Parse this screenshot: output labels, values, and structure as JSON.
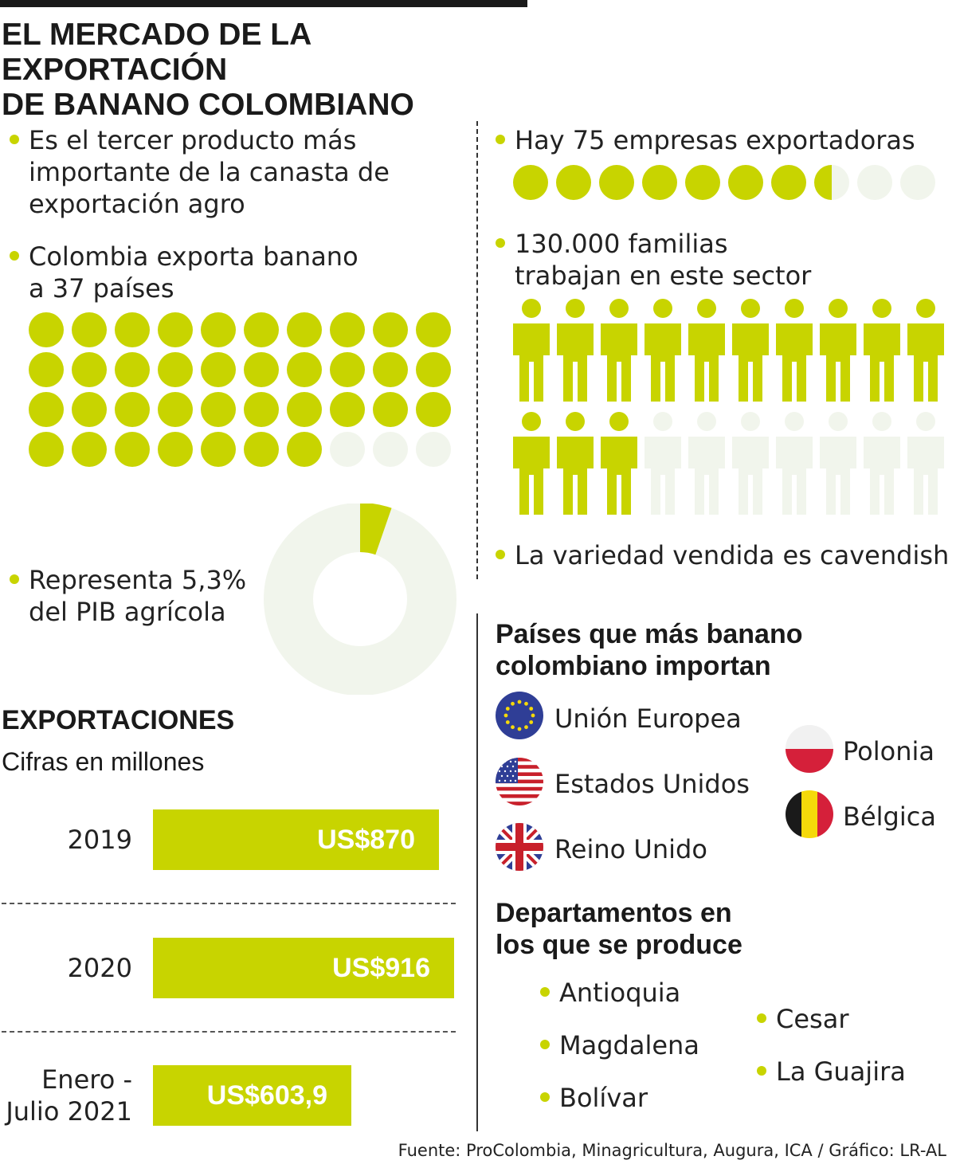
{
  "title": [
    "EL MERCADO DE LA EXPORTACIÓN",
    "DE BANANO COLOMBIANO"
  ],
  "facts": {
    "third_product": [
      "Es el tercer producto más",
      "importante de la canasta de",
      "exportación agro"
    ],
    "countries": [
      "Colombia exporta banano",
      "a 37 países"
    ],
    "pib": [
      "Representa 5,3%",
      "del PIB agrícola"
    ],
    "companies": "Hay 75 empresas exportadoras",
    "families": [
      "130.000 familias",
      "trabajan en este sector"
    ],
    "variety": "La variedad vendida es cavendish"
  },
  "countries_total_icons": 40,
  "countries_value": 37,
  "companies_icons_total": 10,
  "companies_icons_filled": 7.5,
  "families_icons_total": 20,
  "families_icons_filled": 13,
  "pib_share_percent": 5.3,
  "exports": {
    "heading": "EXPORTACIONES",
    "subheading": "Cifras en millones"
  },
  "chart_data": {
    "type": "bar",
    "categories": [
      "2019",
      "2020",
      "Enero - Julio 2021"
    ],
    "category_lines": [
      [
        "2019"
      ],
      [
        "2020"
      ],
      [
        "Enero -",
        "Julio 2021"
      ]
    ],
    "values": [
      870,
      916,
      603.9
    ],
    "value_labels": [
      "US$870",
      "US$916",
      "US$603,9"
    ],
    "title": "EXPORTACIONES",
    "subtitle": "Cifras en millones",
    "orientation": "horizontal",
    "grid": false
  },
  "importers": {
    "heading": [
      "Países que más banano",
      "colombiano importan"
    ],
    "items": [
      {
        "name": "Unión Europea",
        "flag": "eu-flag-icon"
      },
      {
        "name": "Estados Unidos",
        "flag": "us-flag-icon"
      },
      {
        "name": "Reino Unido",
        "flag": "uk-flag-icon"
      },
      {
        "name": "Polonia",
        "flag": "poland-flag-icon"
      },
      {
        "name": "Bélgica",
        "flag": "belgium-flag-icon"
      }
    ]
  },
  "departments": {
    "heading": [
      "Departamentos en",
      "los que se produce"
    ],
    "items": [
      "Antioquia",
      "Magdalena",
      "Bolívar",
      "Cesar",
      "La Guajira"
    ]
  },
  "source": "Fuente: ProColombia, Minagricultura, Augura, ICA / Gráfico: LR-AL",
  "colors": {
    "accent": "#c8d400",
    "empty": "#f1f5ec",
    "text": "#1a1a1a"
  }
}
